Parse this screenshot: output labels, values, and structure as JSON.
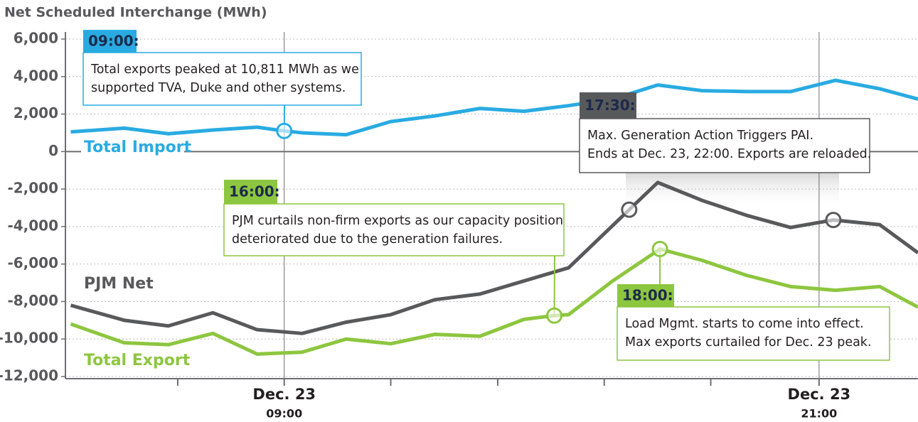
{
  "chart_data": {
    "type": "line",
    "title": "Net Scheduled Interchange (MWh)",
    "series": [
      {
        "name": "Total Import",
        "color": "#29abe2",
        "x": [
          4.21,
          5.41,
          6.4,
          7.4,
          8.39,
          9.0,
          9.4,
          10.39,
          11.39,
          12.38,
          13.39,
          14.38,
          15.38,
          16.37,
          17.38,
          18.37,
          19.37,
          20.36,
          21.37,
          22.36,
          23.22
        ],
        "values": [
          1050,
          1250,
          950,
          1150,
          1300,
          1100,
          1000,
          900,
          1600,
          1900,
          2300,
          2150,
          2450,
          2800,
          3550,
          3250,
          3200,
          3200,
          3800,
          3350,
          2800
        ]
      },
      {
        "name": "PJM Net",
        "color": "#58595b",
        "x": [
          4.21,
          5.41,
          6.4,
          7.4,
          8.39,
          9.4,
          10.39,
          11.39,
          12.38,
          13.39,
          14.38,
          15.38,
          16.74,
          17.38,
          18.37,
          19.37,
          20.36,
          21.32,
          22.36,
          23.22
        ],
        "values": [
          -8200,
          -9000,
          -9300,
          -8600,
          -9500,
          -9700,
          -9100,
          -8700,
          -7900,
          -7600,
          -6900,
          -6200,
          -3100,
          -1650,
          -2600,
          -3400,
          -4050,
          -3650,
          -3900,
          -5400
        ]
      },
      {
        "name": "Total Export",
        "color": "#8dc63f",
        "x": [
          4.21,
          5.41,
          6.4,
          7.4,
          8.39,
          9.4,
          10.39,
          11.39,
          12.38,
          13.39,
          14.38,
          15.06,
          15.38,
          16.37,
          17.43,
          18.37,
          19.37,
          20.36,
          21.37,
          22.36,
          23.22
        ],
        "values": [
          -9200,
          -10200,
          -10300,
          -9700,
          -10800,
          -10700,
          -10000,
          -10250,
          -9750,
          -9850,
          -8950,
          -8750,
          -8700,
          -6900,
          -5200,
          -5800,
          -6600,
          -7200,
          -7400,
          -7200,
          -8300
        ]
      }
    ],
    "xlim": [
      4.09,
      23.22
    ],
    "xticks": [
      6.61,
      {
        "value": 9,
        "label": "Dec. 23",
        "sublabel": "09:00"
      },
      11.39,
      13.79,
      16.18,
      18.57,
      {
        "value": 21,
        "label": "Dec. 23",
        "sublabel": "21:00"
      }
    ],
    "ylim": [
      -12000,
      6000
    ],
    "yticks": [
      {
        "value": 6000,
        "label": "6,000"
      },
      {
        "value": 4000,
        "label": "4,000"
      },
      {
        "value": 2000,
        "label": "2,000"
      },
      0,
      {
        "value": -2000,
        "label": "-2,000"
      },
      {
        "value": -4000,
        "label": "-4,000"
      },
      {
        "value": -6000,
        "label": "-6,000"
      },
      {
        "value": -8000,
        "label": "-8,000"
      },
      {
        "value": -10000,
        "label": "-10,000"
      },
      {
        "value": -12000,
        "label": "-12,000"
      }
    ],
    "grid": true,
    "annotations": [
      {
        "time": "09:00:",
        "lines": [
          "Total exports peaked at 10,811 MWh as we",
          "supported TVA, Duke and other systems."
        ],
        "color": "#29abe2"
      },
      {
        "time": "17:30:",
        "lines": [
          "Max. Generation Action Triggers PAI.",
          "Ends at Dec. 23, 22:00. Exports are reloaded."
        ],
        "color": "#58595b"
      },
      {
        "time": "16:00:",
        "lines": [
          "PJM curtails non-firm exports as our capacity position",
          "deteriorated due to the generation failures."
        ],
        "color": "#8dc63f"
      },
      {
        "time": "18:00:",
        "lines": [
          "Load Mgmt. starts to come into effect.",
          "Max exports curtailed for Dec. 23 peak."
        ],
        "color": "#8dc63f"
      }
    ]
  }
}
